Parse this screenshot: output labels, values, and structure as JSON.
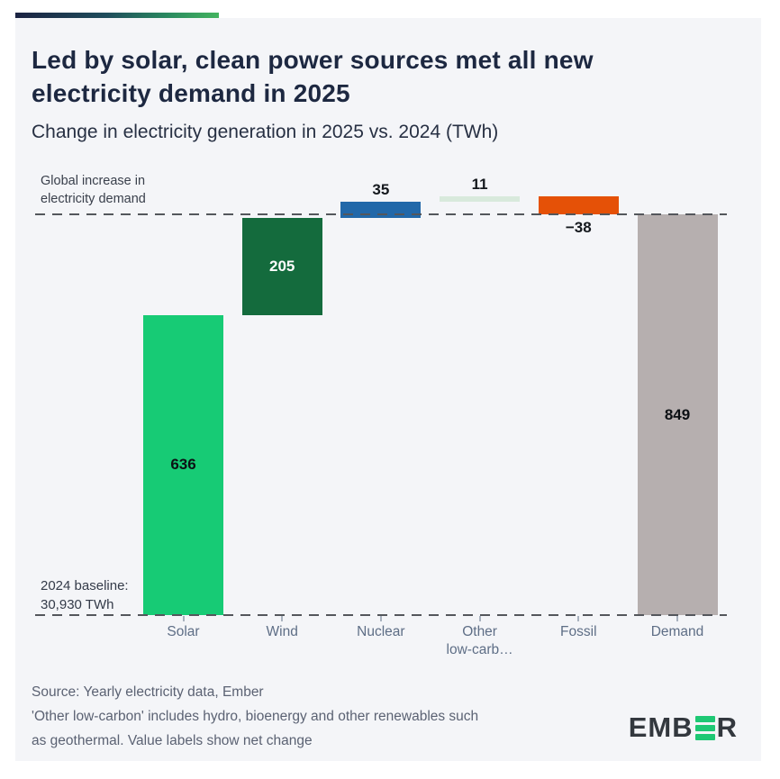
{
  "header": {
    "title": "Led by solar, clean power sources met all new electricity demand in 2025",
    "subtitle": "Change in electricity generation in 2025 vs. 2024 (TWh)"
  },
  "chart_data": {
    "type": "bar",
    "subtype": "waterfall",
    "unit": "TWh",
    "title": "Change in electricity generation in 2025 vs. 2024 (TWh)",
    "categories": [
      "Solar",
      "Wind",
      "Nuclear",
      "Other low-carb…",
      "Fossil",
      "Demand"
    ],
    "values": [
      636,
      205,
      35,
      11,
      -38,
      849
    ],
    "ylim": [
      0,
      887
    ],
    "grid": false,
    "bars": [
      {
        "id": "solar",
        "category": "Solar",
        "value": 636,
        "start": 0,
        "end": 636,
        "color": "#17cb75",
        "value_label": "636",
        "label_position": "inside",
        "label_color": "#0c1014",
        "axis_label": "Solar"
      },
      {
        "id": "wind",
        "category": "Wind",
        "value": 205,
        "start": 636,
        "end": 841,
        "color": "#146b3d",
        "value_label": "205",
        "label_position": "inside",
        "label_color": "#ffffff",
        "axis_label": "Wind"
      },
      {
        "id": "nuclear",
        "category": "Nuclear",
        "value": 35,
        "start": 841,
        "end": 876,
        "color": "#2268a9",
        "value_label": "35",
        "label_position": "above",
        "label_color": "#14181d",
        "axis_label": "Nuclear"
      },
      {
        "id": "other-low-carbon",
        "category": "Other low-carbon",
        "value": 11,
        "start": 876,
        "end": 887,
        "color": "#d8e9dc",
        "value_label": "11",
        "label_position": "above",
        "label_color": "#14181d",
        "axis_label": "Other\nlow-carb…"
      },
      {
        "id": "fossil",
        "category": "Fossil",
        "value": -38,
        "start": 887,
        "end": 849,
        "color": "#e55107",
        "value_label": "−38",
        "label_position": "below",
        "label_color": "#14181d",
        "axis_label": "Fossil"
      },
      {
        "id": "demand",
        "category": "Demand",
        "value": 849,
        "start": 0,
        "end": 849,
        "color": "#b6afaf",
        "value_label": "849",
        "label_position": "inside",
        "label_color": "#0c1014",
        "axis_label": "Demand"
      }
    ],
    "reference_lines": [
      {
        "id": "demand-line",
        "value": 849,
        "label": "Global increase in\nelectricity demand"
      },
      {
        "id": "baseline-line",
        "value": 0,
        "label": "2024 baseline:\n30,930 TWh"
      }
    ]
  },
  "annotations": {
    "demand_line_label": "Global increase in\nelectricity demand",
    "baseline_label": "2024 baseline:\n30,930 TWh"
  },
  "footer": {
    "source_text": "Source: Yearly electricity data, Ember\n'Other low-carbon' includes hydro, bioenergy and other renewables such\nas geothermal. Value labels show net change",
    "logo_prefix": "EMB",
    "logo_suffix": "R",
    "logo_name": "EMBER"
  },
  "colors": {
    "card_background": "#f4f5f8",
    "page_background": "#ffffff",
    "title_text": "#1d2841",
    "dash_line": "#54575c",
    "axis_text": "#5e6e86",
    "source_text": "#5b6273",
    "stripe_gradient": [
      "#1b2342",
      "#1f4d5c",
      "#43b35f"
    ],
    "logo_green": "#1ec874",
    "logo_dark": "#33383e"
  }
}
